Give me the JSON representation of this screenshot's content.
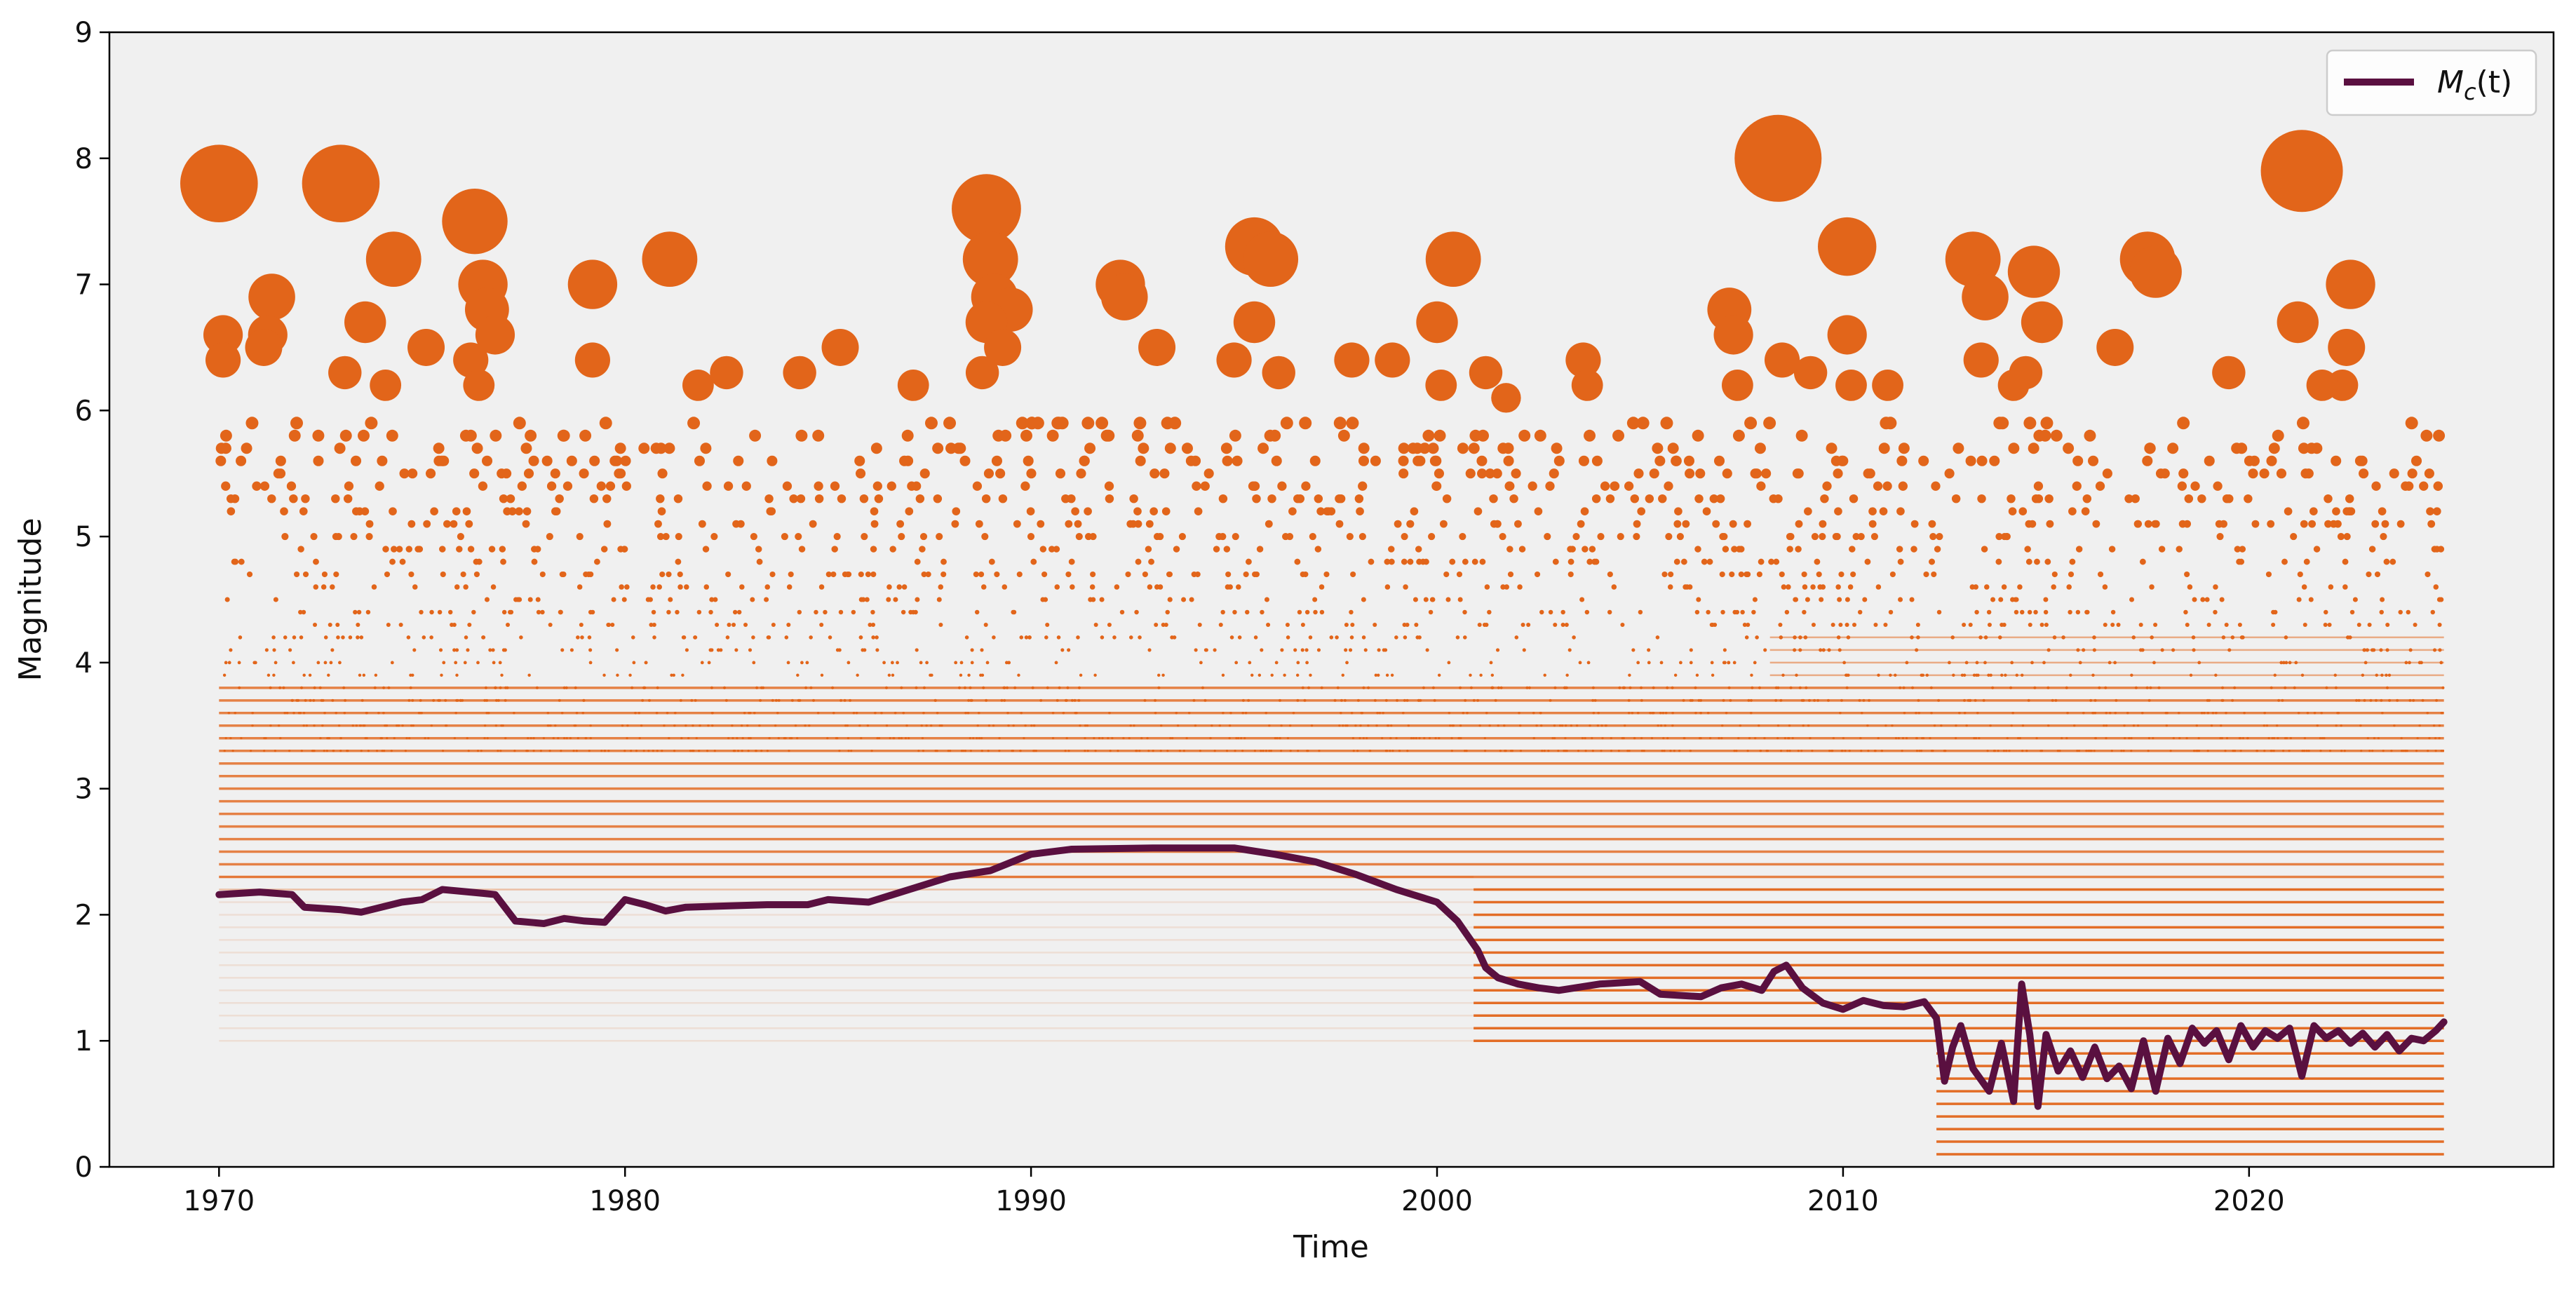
{
  "chart_data": {
    "type": "scatter",
    "title": "",
    "xlabel": "Time",
    "ylabel": "Magnitude",
    "xlim": [
      1967.3,
      2027.5
    ],
    "ylim": [
      0,
      9
    ],
    "xticks": [
      1970,
      1980,
      1990,
      2000,
      2010,
      2020
    ],
    "yticks": [
      0,
      1,
      2,
      3,
      4,
      5,
      6,
      7,
      8,
      9
    ],
    "grid": false,
    "background": "#f0f0f0",
    "legend": {
      "position": "top-right",
      "entries": [
        {
          "label": "M",
          "subscript": "c",
          "suffix": "(t)",
          "color": "#5a1040"
        }
      ]
    },
    "series": [
      {
        "name": "M_c(t)",
        "kind": "line",
        "color": "#5a1040",
        "x": [
          1970.0,
          1971.0,
          1971.8,
          1972.1,
          1973.0,
          1973.5,
          1974.5,
          1975.0,
          1975.5,
          1976.5,
          1976.8,
          1977.3,
          1978.0,
          1978.5,
          1979.0,
          1979.5,
          1980.0,
          1980.5,
          1981.0,
          1981.5,
          1982.5,
          1983.5,
          1984.5,
          1985.0,
          1986.0,
          1987.0,
          1988.0,
          1989.0,
          1990.0,
          1991.0,
          1993.0,
          1995.0,
          1996.0,
          1997.0,
          1998.0,
          1999.0,
          2000.0,
          2000.5,
          2001.0,
          2001.2,
          2001.5,
          2002.0,
          2002.5,
          2003.0,
          2004.0,
          2005.0,
          2005.5,
          2006.5,
          2007.0,
          2007.5,
          2008.0,
          2008.3,
          2008.6,
          2009.0,
          2009.5,
          2010.0,
          2010.5,
          2011.0,
          2011.5,
          2012.0,
          2012.3,
          2012.5,
          2012.7,
          2012.9,
          2013.2,
          2013.6,
          2013.9,
          2014.2,
          2014.4,
          2014.6,
          2014.8,
          2015.0,
          2015.3,
          2015.6,
          2015.9,
          2016.2,
          2016.5,
          2016.8,
          2017.1,
          2017.4,
          2017.7,
          2018.0,
          2018.3,
          2018.6,
          2018.9,
          2019.2,
          2019.5,
          2019.8,
          2020.1,
          2020.4,
          2020.7,
          2021.0,
          2021.3,
          2021.6,
          2021.9,
          2022.2,
          2022.5,
          2022.8,
          2023.1,
          2023.4,
          2023.7,
          2024.0,
          2024.3,
          2024.6,
          2024.8
        ],
        "y": [
          2.16,
          2.18,
          2.16,
          2.06,
          2.04,
          2.02,
          2.1,
          2.12,
          2.2,
          2.17,
          2.16,
          1.95,
          1.93,
          1.97,
          1.95,
          1.94,
          2.12,
          2.08,
          2.03,
          2.06,
          2.07,
          2.08,
          2.08,
          2.12,
          2.1,
          2.2,
          2.3,
          2.35,
          2.48,
          2.52,
          2.53,
          2.53,
          2.48,
          2.42,
          2.32,
          2.2,
          2.1,
          1.95,
          1.72,
          1.58,
          1.5,
          1.45,
          1.42,
          1.4,
          1.45,
          1.47,
          1.37,
          1.35,
          1.42,
          1.45,
          1.4,
          1.55,
          1.6,
          1.42,
          1.3,
          1.25,
          1.32,
          1.28,
          1.27,
          1.31,
          1.18,
          0.68,
          0.95,
          1.12,
          0.78,
          0.6,
          0.98,
          0.52,
          1.45,
          1.05,
          0.48,
          1.05,
          0.76,
          0.92,
          0.71,
          0.95,
          0.7,
          0.8,
          0.62,
          1.0,
          0.6,
          1.02,
          0.82,
          1.1,
          0.98,
          1.08,
          0.85,
          1.12,
          0.95,
          1.08,
          1.02,
          1.1,
          0.72,
          1.12,
          1.02,
          1.08,
          0.98,
          1.06,
          0.95,
          1.05,
          0.92,
          1.02,
          1.0,
          1.08,
          1.15
        ]
      },
      {
        "name": "",
        "kind": "scatter",
        "color": "#e2651a",
        "size_by": "magnitude",
        "points": [
          [
            1970.0,
            7.8
          ],
          [
            1970.1,
            6.6
          ],
          [
            1970.1,
            6.4
          ],
          [
            1971.3,
            6.9
          ],
          [
            1971.2,
            6.6
          ],
          [
            1971.1,
            6.5
          ],
          [
            1973.0,
            7.8
          ],
          [
            1973.1,
            6.3
          ],
          [
            1973.6,
            6.7
          ],
          [
            1974.3,
            7.2
          ],
          [
            1974.1,
            6.2
          ],
          [
            1975.1,
            6.5
          ],
          [
            1976.3,
            7.5
          ],
          [
            1976.5,
            7.0
          ],
          [
            1976.6,
            6.8
          ],
          [
            1976.8,
            6.6
          ],
          [
            1976.2,
            6.4
          ],
          [
            1976.4,
            6.2
          ],
          [
            1979.2,
            7.0
          ],
          [
            1979.2,
            6.4
          ],
          [
            1981.1,
            7.2
          ],
          [
            1981.8,
            6.2
          ],
          [
            1982.5,
            6.3
          ],
          [
            1984.3,
            6.3
          ],
          [
            1985.3,
            6.5
          ],
          [
            1987.1,
            6.2
          ],
          [
            1988.9,
            7.6
          ],
          [
            1989.0,
            7.2
          ],
          [
            1989.1,
            6.9
          ],
          [
            1989.5,
            6.8
          ],
          [
            1988.9,
            6.7
          ],
          [
            1989.3,
            6.5
          ],
          [
            1988.8,
            6.3
          ],
          [
            1992.2,
            7.0
          ],
          [
            1992.3,
            6.9
          ],
          [
            1993.1,
            6.5
          ],
          [
            1995.5,
            7.3
          ],
          [
            1995.9,
            7.2
          ],
          [
            1995.5,
            6.7
          ],
          [
            1995.0,
            6.4
          ],
          [
            1996.1,
            6.3
          ],
          [
            1997.9,
            6.4
          ],
          [
            1998.9,
            6.4
          ],
          [
            2000.4,
            7.2
          ],
          [
            2000.0,
            6.7
          ],
          [
            2000.1,
            6.2
          ],
          [
            2001.2,
            6.3
          ],
          [
            2001.7,
            6.1
          ],
          [
            2003.6,
            6.4
          ],
          [
            2003.7,
            6.2
          ],
          [
            2007.2,
            6.8
          ],
          [
            2007.3,
            6.6
          ],
          [
            2007.4,
            6.2
          ],
          [
            2008.4,
            8.0
          ],
          [
            2010.1,
            7.3
          ],
          [
            2008.5,
            6.4
          ],
          [
            2009.2,
            6.3
          ],
          [
            2010.1,
            6.6
          ],
          [
            2010.2,
            6.2
          ],
          [
            2011.1,
            6.2
          ],
          [
            2013.2,
            7.2
          ],
          [
            2013.5,
            6.9
          ],
          [
            2013.4,
            6.4
          ],
          [
            2014.2,
            6.2
          ],
          [
            2014.7,
            7.1
          ],
          [
            2014.9,
            6.7
          ],
          [
            2014.5,
            6.3
          ],
          [
            2016.7,
            6.5
          ],
          [
            2017.5,
            7.2
          ],
          [
            2017.7,
            7.1
          ],
          [
            2019.5,
            6.3
          ],
          [
            2021.3,
            7.9
          ],
          [
            2021.2,
            6.7
          ],
          [
            2022.5,
            7.0
          ],
          [
            2022.4,
            6.5
          ],
          [
            2022.3,
            6.2
          ],
          [
            2021.8,
            6.2
          ]
        ]
      }
    ]
  }
}
